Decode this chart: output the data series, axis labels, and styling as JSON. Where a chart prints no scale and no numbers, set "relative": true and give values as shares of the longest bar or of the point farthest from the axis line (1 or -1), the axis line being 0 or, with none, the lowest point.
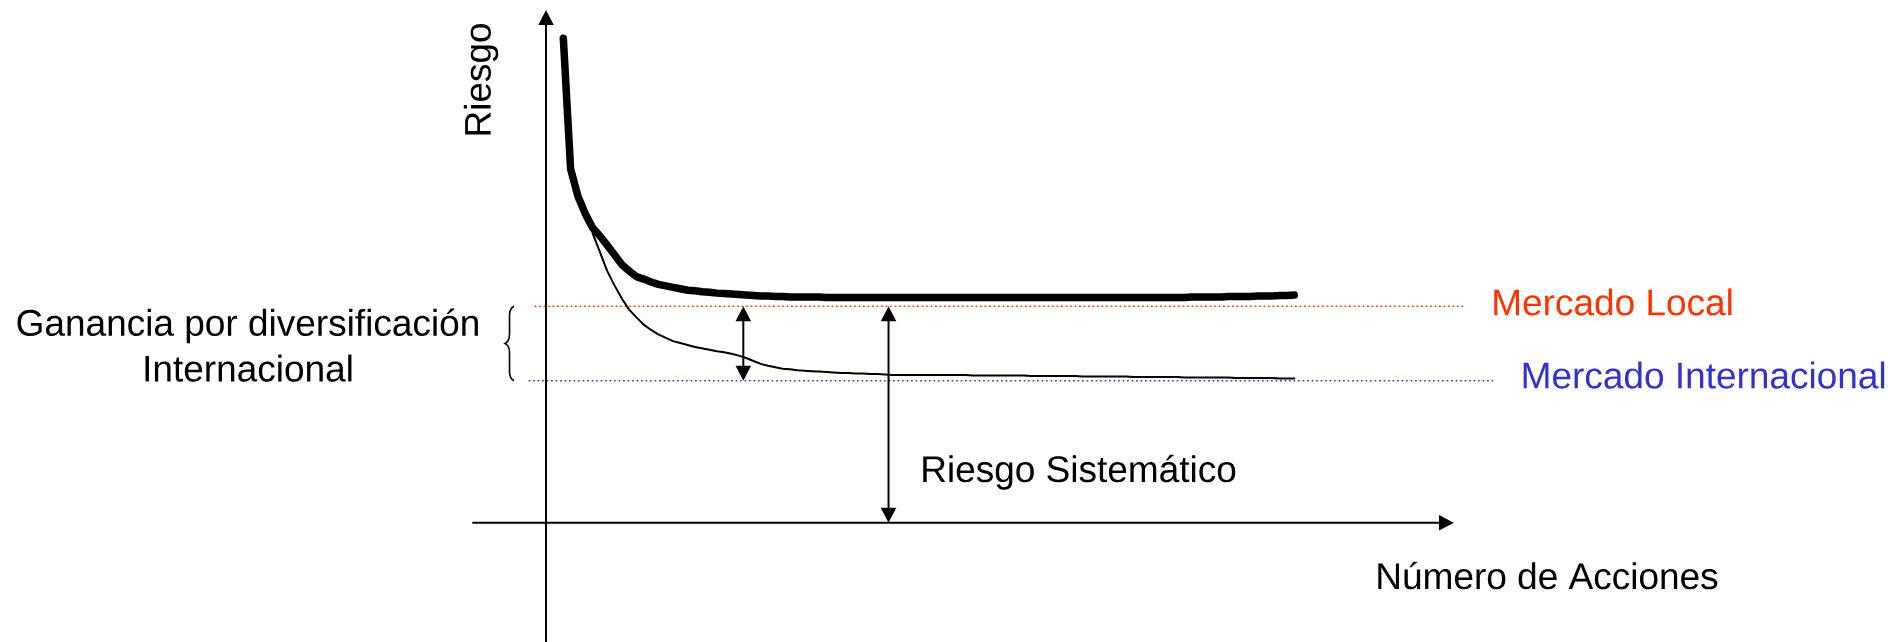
{
  "chart_data": {
    "type": "line",
    "xlabel": "Número de Acciones",
    "ylabel": "Riesgo",
    "relative": true,
    "marker": "none",
    "line_style": "solid",
    "categories": [
      null,
      null,
      null,
      null,
      null,
      null,
      null,
      null,
      null,
      null,
      null,
      null,
      null,
      null,
      null,
      null,
      null,
      null,
      null,
      null,
      null,
      null,
      null,
      null,
      null,
      null,
      null,
      null,
      null,
      null,
      null,
      null,
      null,
      null,
      null,
      null,
      null,
      null,
      null,
      null,
      null,
      null,
      null,
      null,
      null,
      null,
      null,
      null,
      null,
      null,
      null,
      null,
      null,
      null,
      null,
      null,
      null,
      null,
      null,
      null,
      null,
      null,
      null,
      null,
      null,
      null,
      null,
      null,
      null,
      null,
      null,
      null,
      null,
      null,
      null,
      null,
      null,
      null,
      null,
      null,
      null,
      null,
      null,
      null,
      null,
      null,
      null,
      null,
      null,
      null,
      null,
      null,
      null,
      null,
      null,
      null,
      null,
      null,
      null,
      null,
      null
    ],
    "series": [
      {
        "color": "#000000",
        "values": [
          1,
          0.73,
          0.674,
          0.638,
          0.609,
          0.592,
          0.573,
          0.553,
          0.533,
          0.52,
          0.508,
          0.503,
          0.497,
          0.492,
          0.489,
          0.486,
          0.483,
          0.48,
          0.479,
          0.477,
          0.476,
          0.474,
          0.473,
          0.472,
          0.471,
          0.47,
          0.469,
          0.468,
          0.468,
          0.467,
          0.467,
          0.466,
          0.466,
          0.466,
          0.466,
          0.466,
          0.465,
          0.465,
          0.465,
          0.465,
          0.465,
          0.465,
          0.465,
          0.465,
          0.465,
          0.465,
          0.465,
          0.465,
          0.465,
          0.465,
          0.465,
          0.465,
          0.465,
          0.465,
          0.465,
          0.465,
          0.465,
          0.465,
          0.465,
          0.465,
          0.465,
          0.465,
          0.465,
          0.465,
          0.465,
          0.465,
          0.465,
          0.465,
          0.465,
          0.465,
          0.465,
          0.465,
          0.465,
          0.465,
          0.465,
          0.465,
          0.465,
          0.465,
          0.465,
          0.465,
          0.465,
          0.465,
          0.465,
          0.465,
          0.465,
          0.465,
          0.466,
          0.466,
          0.466,
          0.466,
          0.466,
          0.467,
          0.467,
          0.467,
          0.467,
          0.468,
          0.468,
          0.468,
          0.469,
          0.469,
          0.47
        ]
      },
      {
        "color": "#000000",
        "values": [
          null,
          null,
          null,
          null,
          0.598,
          0.559,
          0.52,
          0.49,
          0.463,
          0.44,
          0.424,
          0.409,
          0.398,
          0.389,
          0.382,
          0.375,
          0.371,
          0.367,
          0.363,
          0.36,
          0.357,
          0.354,
          0.352,
          0.349,
          0.345,
          0.34,
          0.334,
          0.328,
          0.324,
          0.321,
          0.318,
          0.317,
          0.315,
          0.314,
          0.313,
          0.312,
          0.311,
          0.31,
          0.309,
          0.309,
          0.308,
          0.308,
          0.307,
          0.307,
          0.306,
          0.305,
          0.305,
          0.305,
          0.305,
          0.305,
          0.305,
          0.305,
          0.305,
          0.305,
          0.305,
          0.305,
          0.304,
          0.304,
          0.304,
          0.304,
          0.304,
          0.304,
          0.304,
          0.304,
          0.303,
          0.303,
          0.303,
          0.303,
          0.303,
          0.303,
          0.303,
          0.302,
          0.302,
          0.302,
          0.302,
          0.302,
          0.302,
          0.302,
          0.301,
          0.301,
          0.301,
          0.301,
          0.301,
          0.301,
          0.301,
          0.3,
          0.3,
          0.3,
          0.3,
          0.3,
          0.3,
          0.3,
          0.299,
          0.299,
          0.299,
          0.299,
          0.299,
          0.299,
          0.298,
          0.298,
          0.298
        ]
      }
    ],
    "ref_lines": [
      {
        "axis": "y",
        "value": 0.447,
        "label": "Mercado Local",
        "color": "#ff3300",
        "line_style": "dotted"
      },
      {
        "axis": "y",
        "value": 0.293,
        "label": "Mercado Internacional",
        "color": "#3333cc",
        "line_style": "dotted"
      }
    ],
    "annotations": [
      "Ganancia por diversificación Internacional",
      "Riesgo Sistemático"
    ]
  }
}
